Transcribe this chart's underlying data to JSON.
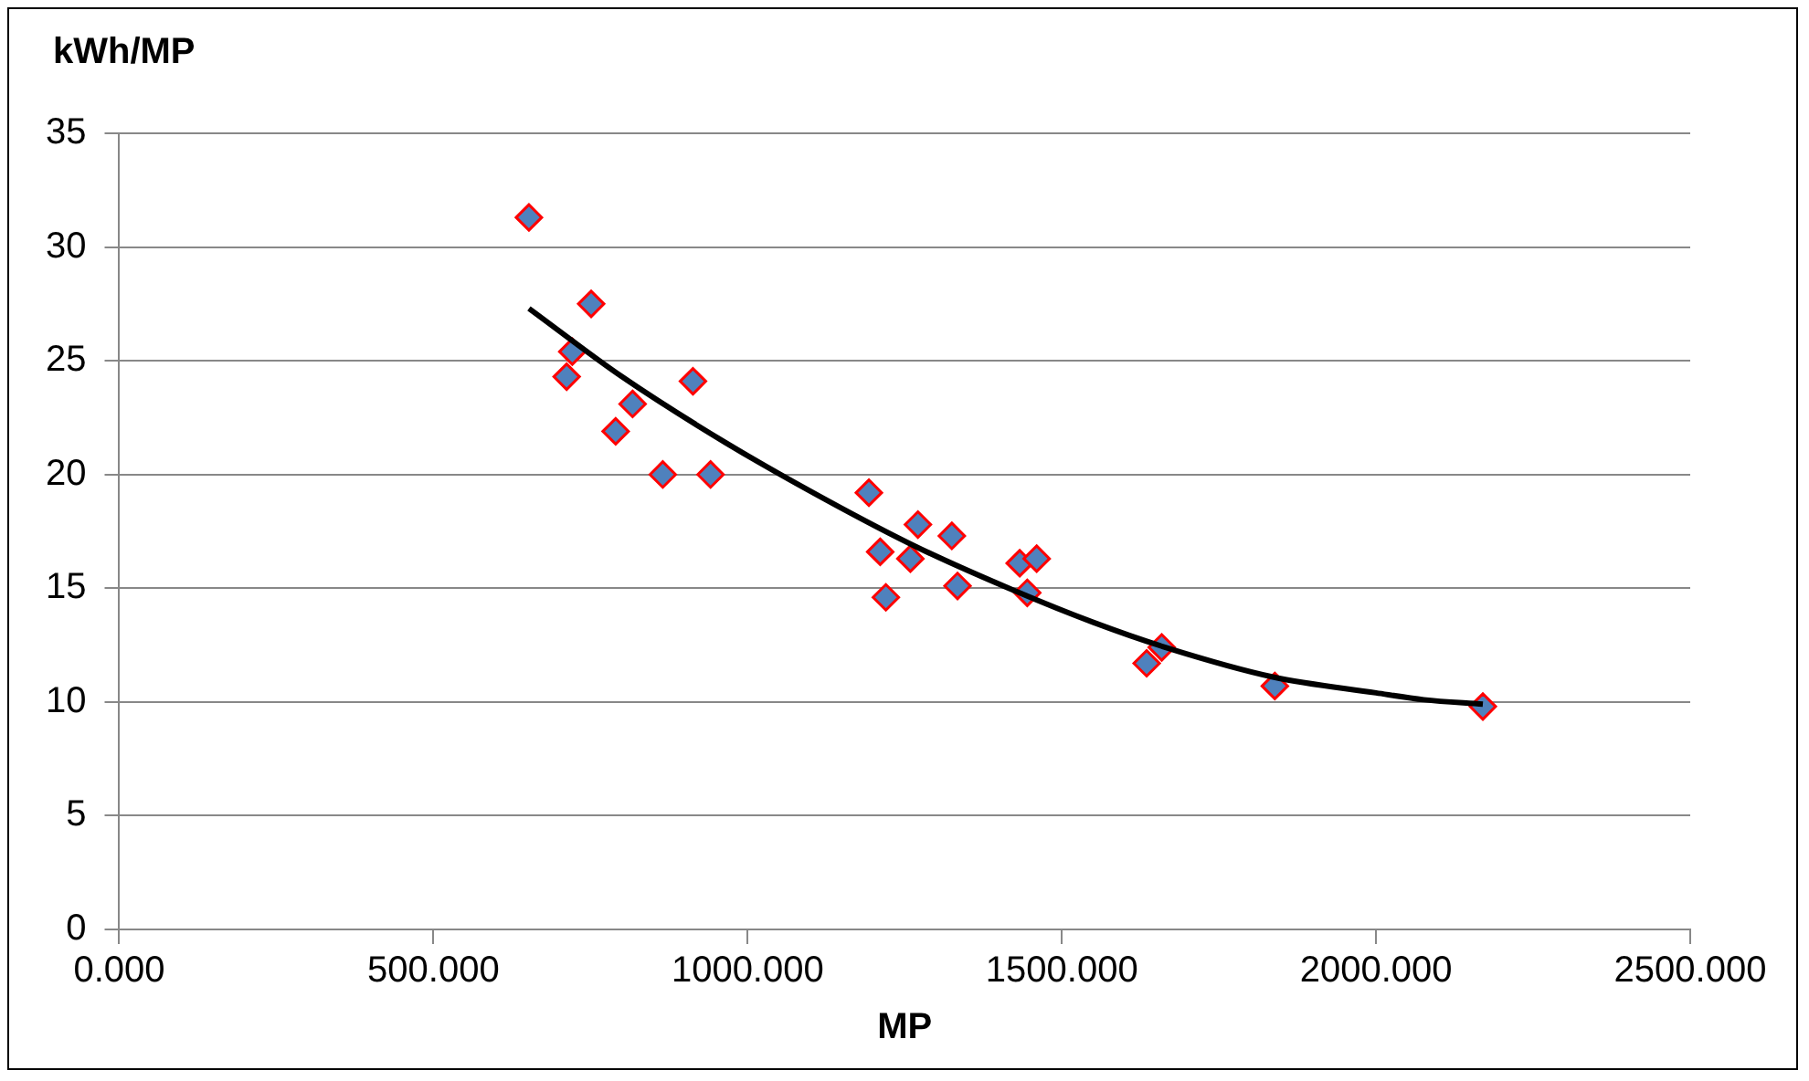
{
  "chart_data": {
    "type": "scatter",
    "xlabel": "MP",
    "ylabel": "kWh/MP",
    "xlim": [
      0,
      2500
    ],
    "xticks": [
      {
        "value": 0,
        "label": "0.000"
      },
      {
        "value": 500,
        "label": "500.000"
      },
      {
        "value": 1000,
        "label": "1000.000"
      },
      {
        "value": 1500,
        "label": "1500.000"
      },
      {
        "value": 2000,
        "label": "2000.000"
      },
      {
        "value": 2500,
        "label": "2500.000"
      }
    ],
    "ylim": [
      0,
      35
    ],
    "yticks": [
      0,
      5,
      10,
      15,
      20,
      25,
      30,
      35
    ],
    "grid": "y",
    "legend": false,
    "marker": "diamond",
    "series": [
      {
        "color": "#4f81bd",
        "x": [
          652,
          751,
          721,
          712,
          817,
          913,
          790,
          865,
          941,
          1193,
          1211,
          1271,
          1325,
          1259,
          1220,
          1334,
          1433,
          1460,
          1445,
          1635,
          1659,
          1839,
          2170
        ],
        "values": [
          31.3,
          27.5,
          25.4,
          24.3,
          23.1,
          24.1,
          21.9,
          20.0,
          20.0,
          19.2,
          16.6,
          17.8,
          17.3,
          16.3,
          14.6,
          15.1,
          16.1,
          16.3,
          14.8,
          11.7,
          12.4,
          10.7,
          9.8
        ]
      },
      {
        "type": "line",
        "color": "#000000",
        "line_style": "solid",
        "marker": "none",
        "x": [
          652,
          800,
          965,
          1124,
          1270,
          1424,
          1550,
          1665,
          1836,
          2000,
          2076,
          2170
        ],
        "values": [
          27.3,
          24.3,
          21.4,
          18.9,
          16.8,
          14.9,
          13.5,
          12.4,
          11.1,
          10.4,
          10.1,
          9.9
        ]
      }
    ]
  }
}
